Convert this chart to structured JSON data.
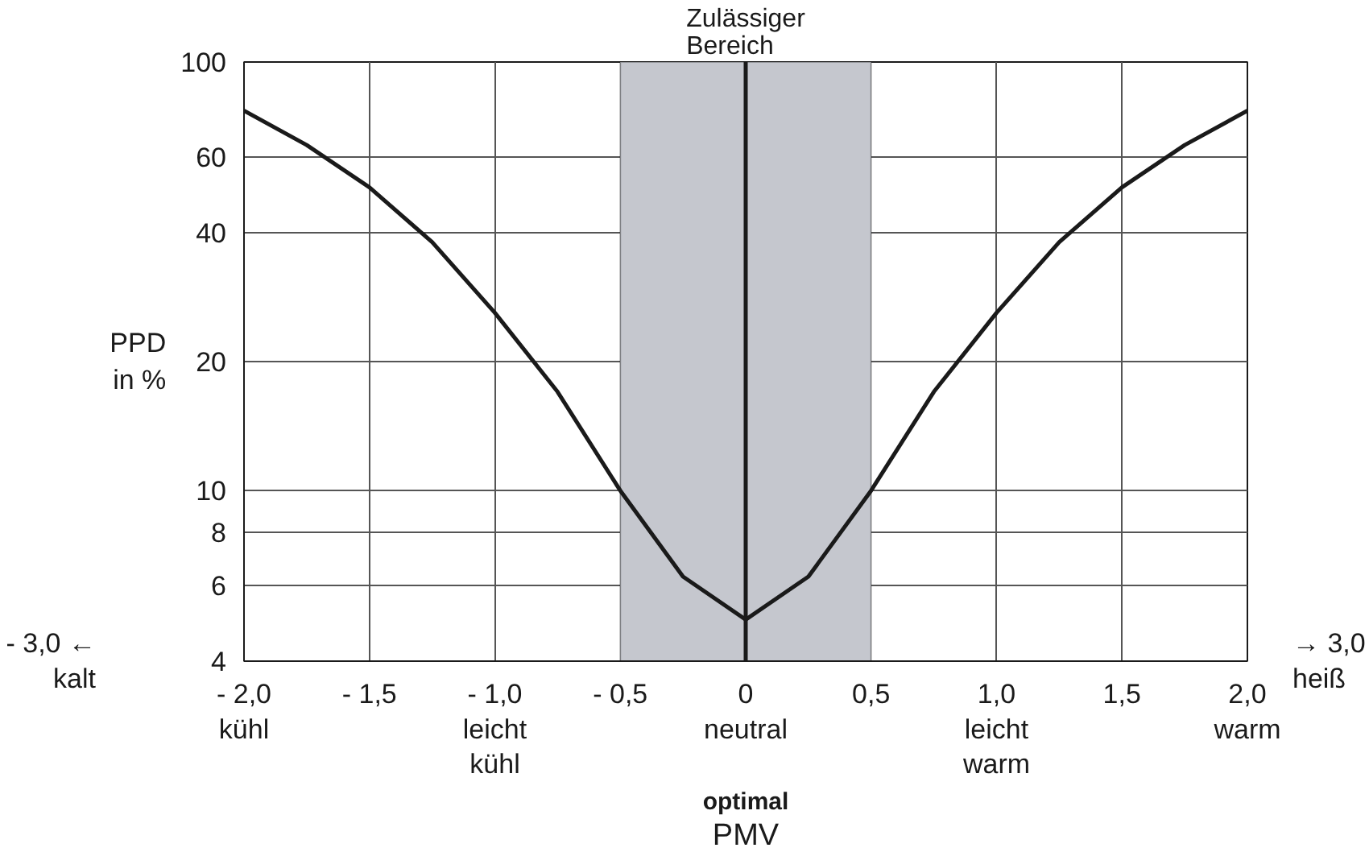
{
  "chart_data": {
    "type": "line",
    "xlabel": "PMV",
    "ylabel": "PPD\nin %",
    "x": [
      -2.0,
      -1.75,
      -1.5,
      -1.25,
      -1.0,
      -0.75,
      -0.5,
      -0.25,
      0,
      0.25,
      0.5,
      0.75,
      1.0,
      1.25,
      1.5,
      1.75,
      2.0
    ],
    "series": [
      {
        "color": "#1a1a1a",
        "values": [
          77,
          64,
          51,
          38,
          26,
          17,
          10,
          6.3,
          5,
          6.3,
          10,
          17,
          26,
          38,
          51,
          64,
          77
        ]
      }
    ],
    "xlim": [
      -2.0,
      2.0
    ],
    "ylim": [
      4,
      100
    ],
    "log": "y",
    "xticks": [
      {
        "value": -2.0,
        "label": "- 2,0\nkühl"
      },
      {
        "value": -1.5,
        "label": "- 1,5"
      },
      {
        "value": -1.0,
        "label": "- 1,0\nleicht\nkühl"
      },
      {
        "value": -0.5,
        "label": "- 0,5"
      },
      {
        "value": 0,
        "label": "0\nneutral"
      },
      {
        "value": 0.5,
        "label": "0,5"
      },
      {
        "value": 1.0,
        "label": "1,0\nleicht\nwarm"
      },
      {
        "value": 1.5,
        "label": "1,5"
      },
      {
        "value": 2.0,
        "label": "2,0\nwarm"
      }
    ],
    "yticks": [
      4,
      6,
      8,
      10,
      20,
      40,
      60,
      100
    ],
    "grid": true,
    "legend": false,
    "marker": "none",
    "line_style": "solid",
    "bands": [
      {
        "axis": "x",
        "from": -0.5,
        "to": 0.5,
        "label": "Zulässiger\nBereich",
        "color": "#c5c7ce"
      }
    ],
    "ref_lines": [
      {
        "axis": "x",
        "value": 0,
        "color": "#1a1a1a"
      }
    ],
    "annotations": [
      "- 3,0 ←\nkalt",
      "→ 3,0\nheiß",
      "optimal"
    ]
  }
}
